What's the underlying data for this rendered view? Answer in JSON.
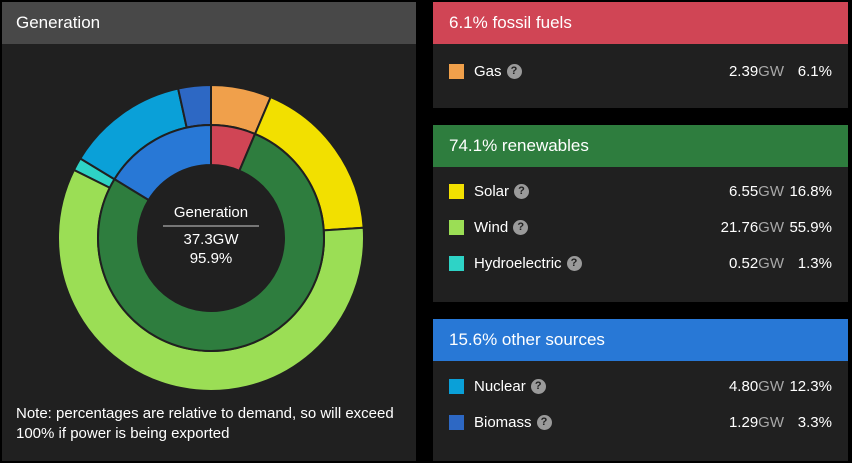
{
  "generation": {
    "header": "Generation",
    "center_title": "Generation",
    "center_value": "37.3GW",
    "center_pct": "95.9%",
    "note": "Note: percentages are relative to demand, so will exceed 100% if power is being exported"
  },
  "groups": [
    {
      "label": "6.1% fossil fuels",
      "color": "#d04555",
      "items": [
        {
          "name": "Gas",
          "gw": "2.39",
          "unit": "GW",
          "pct": "6.1%",
          "color": "#f0a04b"
        }
      ]
    },
    {
      "label": "74.1% renewables",
      "color": "#2e7d3e",
      "items": [
        {
          "name": "Solar",
          "gw": "6.55",
          "unit": "GW",
          "pct": "16.8%",
          "color": "#f2e000"
        },
        {
          "name": "Wind",
          "gw": "21.76",
          "unit": "GW",
          "pct": "55.9%",
          "color": "#9bde55"
        },
        {
          "name": "Hydroelectric",
          "gw": "0.52",
          "unit": "GW",
          "pct": "1.3%",
          "color": "#2ed3c6"
        }
      ]
    },
    {
      "label": "15.6% other sources",
      "color": "#2878d6",
      "items": [
        {
          "name": "Nuclear",
          "gw": "4.80",
          "unit": "GW",
          "pct": "12.3%",
          "color": "#0aa0d8"
        },
        {
          "name": "Biomass",
          "gw": "1.29",
          "unit": "GW",
          "pct": "3.3%",
          "color": "#2d68c4"
        }
      ]
    }
  ],
  "chart_data": {
    "type": "pie",
    "inner_ring": [
      {
        "group": "fossil fuels",
        "value": 6.1,
        "color": "#d04555"
      },
      {
        "group": "renewables",
        "value": 74.1,
        "color": "#2e7d3e"
      },
      {
        "group": "other sources",
        "value": 15.6,
        "color": "#2878d6"
      }
    ],
    "outer_ring": [
      {
        "source": "Gas",
        "value": 6.1,
        "color": "#f0a04b"
      },
      {
        "source": "Solar",
        "value": 16.8,
        "color": "#f2e000"
      },
      {
        "source": "Wind",
        "value": 55.9,
        "color": "#9bde55"
      },
      {
        "source": "Hydroelectric",
        "value": 1.3,
        "color": "#2ed3c6"
      },
      {
        "source": "Nuclear",
        "value": 12.3,
        "color": "#0aa0d8"
      },
      {
        "source": "Biomass",
        "value": 3.3,
        "color": "#2d68c4"
      }
    ],
    "total_pct": 95.9
  }
}
